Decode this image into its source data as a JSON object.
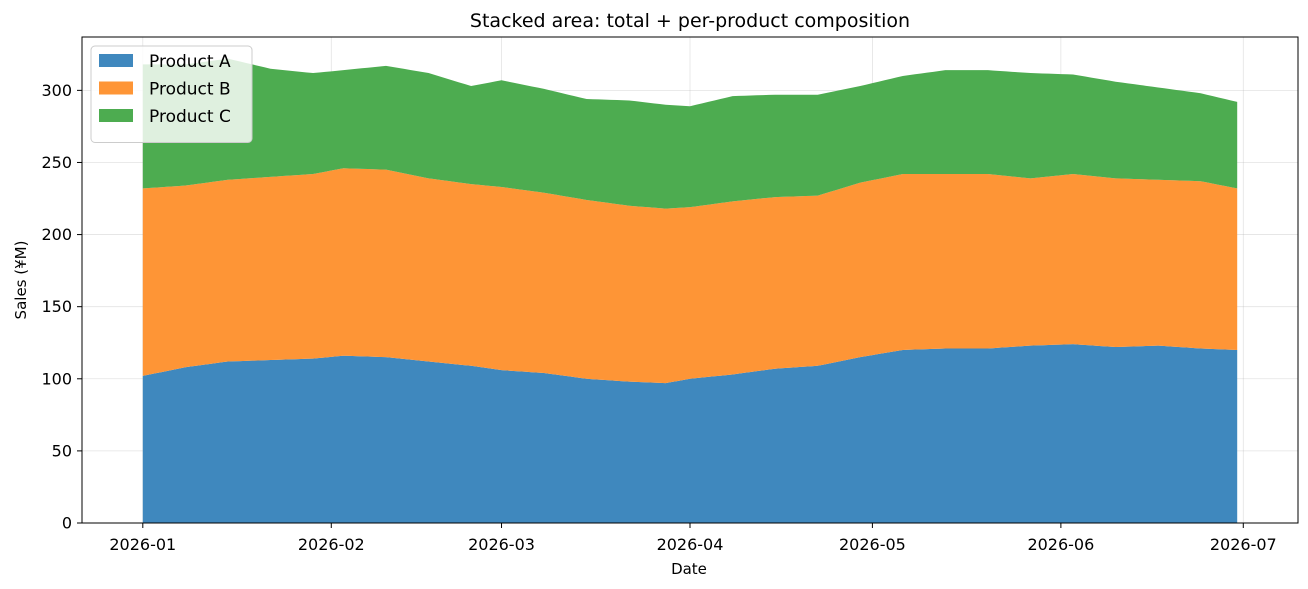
{
  "chart_data": {
    "type": "area",
    "stacked": true,
    "title": "Stacked area: total + per-product composition",
    "xlabel": "Date",
    "ylabel": "Sales (¥M)",
    "x_start": "2026-01-01",
    "x_end": "2026-06-30",
    "xlim": [
      "2025-12-22",
      "2026-07-10"
    ],
    "ylim": [
      0,
      337
    ],
    "x_ticks": [
      "2026-01",
      "2026-02",
      "2026-03",
      "2026-04",
      "2026-05",
      "2026-06",
      "2026-07"
    ],
    "y_ticks": [
      0,
      50,
      100,
      150,
      200,
      250,
      300
    ],
    "grid": true,
    "legend_position": "upper-left",
    "series": [
      {
        "name": "Product A",
        "color": "#3f88be",
        "points": [
          [
            "2026-01-01",
            102
          ],
          [
            "2026-01-08",
            108
          ],
          [
            "2026-01-15",
            112
          ],
          [
            "2026-01-22",
            113
          ],
          [
            "2026-01-29",
            114
          ],
          [
            "2026-02-03",
            116
          ],
          [
            "2026-02-10",
            115
          ],
          [
            "2026-02-17",
            112
          ],
          [
            "2026-02-24",
            109
          ],
          [
            "2026-03-01",
            106
          ],
          [
            "2026-03-08",
            104
          ],
          [
            "2026-03-15",
            100
          ],
          [
            "2026-03-22",
            98
          ],
          [
            "2026-03-28",
            97
          ],
          [
            "2026-04-01",
            100
          ],
          [
            "2026-04-08",
            103
          ],
          [
            "2026-04-15",
            107
          ],
          [
            "2026-04-22",
            109
          ],
          [
            "2026-04-29",
            115
          ],
          [
            "2026-05-06",
            120
          ],
          [
            "2026-05-13",
            121
          ],
          [
            "2026-05-20",
            121
          ],
          [
            "2026-05-27",
            123
          ],
          [
            "2026-06-03",
            124
          ],
          [
            "2026-06-10",
            122
          ],
          [
            "2026-06-17",
            123
          ],
          [
            "2026-06-24",
            121
          ],
          [
            "2026-06-30",
            120
          ]
        ]
      },
      {
        "name": "Product B",
        "color": "#fe9536",
        "points": [
          [
            "2026-01-01",
            130
          ],
          [
            "2026-01-08",
            126
          ],
          [
            "2026-01-15",
            126
          ],
          [
            "2026-01-22",
            127
          ],
          [
            "2026-01-29",
            128
          ],
          [
            "2026-02-03",
            130
          ],
          [
            "2026-02-10",
            130
          ],
          [
            "2026-02-17",
            127
          ],
          [
            "2026-02-24",
            126
          ],
          [
            "2026-03-01",
            127
          ],
          [
            "2026-03-08",
            125
          ],
          [
            "2026-03-15",
            124
          ],
          [
            "2026-03-22",
            122
          ],
          [
            "2026-03-28",
            121
          ],
          [
            "2026-04-01",
            119
          ],
          [
            "2026-04-08",
            120
          ],
          [
            "2026-04-15",
            119
          ],
          [
            "2026-04-22",
            118
          ],
          [
            "2026-04-29",
            121
          ],
          [
            "2026-05-06",
            122
          ],
          [
            "2026-05-13",
            121
          ],
          [
            "2026-05-20",
            121
          ],
          [
            "2026-05-27",
            116
          ],
          [
            "2026-06-03",
            118
          ],
          [
            "2026-06-10",
            117
          ],
          [
            "2026-06-17",
            115
          ],
          [
            "2026-06-24",
            116
          ],
          [
            "2026-06-30",
            112
          ]
        ]
      },
      {
        "name": "Product C",
        "color": "#4dac50",
        "points": [
          [
            "2026-01-01",
            86
          ],
          [
            "2026-01-08",
            84
          ],
          [
            "2026-01-15",
            84
          ],
          [
            "2026-01-22",
            75
          ],
          [
            "2026-01-29",
            70
          ],
          [
            "2026-02-03",
            68
          ],
          [
            "2026-02-10",
            72
          ],
          [
            "2026-02-17",
            73
          ],
          [
            "2026-02-24",
            68
          ],
          [
            "2026-03-01",
            74
          ],
          [
            "2026-03-08",
            72
          ],
          [
            "2026-03-15",
            70
          ],
          [
            "2026-03-22",
            73
          ],
          [
            "2026-03-28",
            72
          ],
          [
            "2026-04-01",
            70
          ],
          [
            "2026-04-08",
            73
          ],
          [
            "2026-04-15",
            71
          ],
          [
            "2026-04-22",
            70
          ],
          [
            "2026-04-29",
            67
          ],
          [
            "2026-05-06",
            68
          ],
          [
            "2026-05-13",
            72
          ],
          [
            "2026-05-20",
            72
          ],
          [
            "2026-05-27",
            73
          ],
          [
            "2026-06-03",
            69
          ],
          [
            "2026-06-10",
            67
          ],
          [
            "2026-06-17",
            64
          ],
          [
            "2026-06-24",
            61
          ],
          [
            "2026-06-30",
            60
          ]
        ]
      }
    ]
  }
}
